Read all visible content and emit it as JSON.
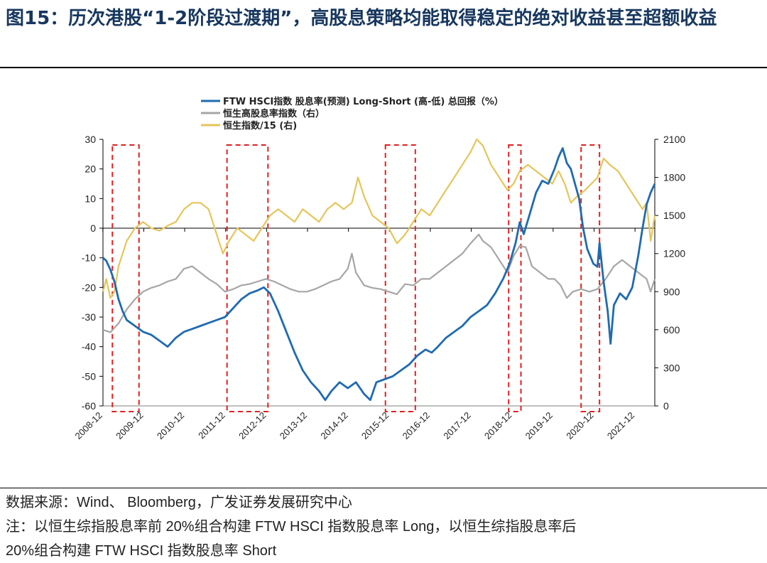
{
  "header": {
    "title": "图15：历次港股“1-2阶段过渡期”，高股息策略均能取得稳定的绝对收益甚至超额收益"
  },
  "footer": {
    "source": "数据来源：Wind、 Bloomberg，广发证券发展研究中心",
    "note_line1": "注：以恒生综指股息率前 20%组合构建 FTW HSCI 指数股息率 Long，以恒生综指股息率后",
    "note_line2": "20%组合构建 FTW HSCI 指数股息率 Short"
  },
  "chart_data": {
    "type": "line",
    "legend": [
      {
        "name": "FTW HSCI指数 股息率(预测) Long-Short (高-低) 总回报（%）",
        "color": "#1f6bb0"
      },
      {
        "name": "恒生高股息率指数（右）",
        "color": "#a6a6a6"
      },
      {
        "name": "恒生指数/15 (右)",
        "color": "#e6c55a"
      }
    ],
    "x_ticks": [
      "2008-12",
      "2009-12",
      "2010-12",
      "2011-12",
      "2012-12",
      "2013-12",
      "2014-12",
      "2015-12",
      "2016-12",
      "2017-12",
      "2018-12",
      "2019-12",
      "2020-12",
      "2021-12"
    ],
    "x_range": [
      2008.92,
      2022.4
    ],
    "y_left": {
      "min": -60,
      "max": 30,
      "ticks": [
        30,
        20,
        10,
        0,
        -10,
        -20,
        -30,
        -40,
        -50,
        -60
      ]
    },
    "y_right": {
      "min": 0,
      "max": 2100,
      "ticks": [
        2100,
        1800,
        1500,
        1200,
        900,
        600,
        300,
        0
      ]
    },
    "series": [
      {
        "name": "FTW HSCI Long-Short",
        "axis": "left",
        "color": "#1f6bb0",
        "points": [
          [
            2008.92,
            -10
          ],
          [
            2009.0,
            -11
          ],
          [
            2009.1,
            -14
          ],
          [
            2009.2,
            -18
          ],
          [
            2009.3,
            -24
          ],
          [
            2009.4,
            -28
          ],
          [
            2009.5,
            -31
          ],
          [
            2009.7,
            -33
          ],
          [
            2009.9,
            -35
          ],
          [
            2010.1,
            -36
          ],
          [
            2010.3,
            -38
          ],
          [
            2010.5,
            -40
          ],
          [
            2010.7,
            -37
          ],
          [
            2010.9,
            -35
          ],
          [
            2011.1,
            -34
          ],
          [
            2011.3,
            -33
          ],
          [
            2011.5,
            -32
          ],
          [
            2011.7,
            -31
          ],
          [
            2011.9,
            -30
          ],
          [
            2012.1,
            -27
          ],
          [
            2012.3,
            -24
          ],
          [
            2012.5,
            -22
          ],
          [
            2012.7,
            -21
          ],
          [
            2012.85,
            -20
          ],
          [
            2013.0,
            -22
          ],
          [
            2013.2,
            -28
          ],
          [
            2013.4,
            -35
          ],
          [
            2013.6,
            -42
          ],
          [
            2013.8,
            -48
          ],
          [
            2014.0,
            -52
          ],
          [
            2014.2,
            -55
          ],
          [
            2014.35,
            -58
          ],
          [
            2014.5,
            -55
          ],
          [
            2014.7,
            -52
          ],
          [
            2014.9,
            -54
          ],
          [
            2015.1,
            -52
          ],
          [
            2015.3,
            -56
          ],
          [
            2015.45,
            -58
          ],
          [
            2015.6,
            -52
          ],
          [
            2015.8,
            -51
          ],
          [
            2016.0,
            -50
          ],
          [
            2016.2,
            -48
          ],
          [
            2016.4,
            -46
          ],
          [
            2016.6,
            -43
          ],
          [
            2016.8,
            -41
          ],
          [
            2016.95,
            -42
          ],
          [
            2017.1,
            -40
          ],
          [
            2017.3,
            -37
          ],
          [
            2017.5,
            -35
          ],
          [
            2017.7,
            -33
          ],
          [
            2017.9,
            -30
          ],
          [
            2018.1,
            -28
          ],
          [
            2018.3,
            -26
          ],
          [
            2018.5,
            -22
          ],
          [
            2018.7,
            -17
          ],
          [
            2018.85,
            -12
          ],
          [
            2019.0,
            -5
          ],
          [
            2019.1,
            2
          ],
          [
            2019.2,
            -2
          ],
          [
            2019.35,
            5
          ],
          [
            2019.5,
            12
          ],
          [
            2019.65,
            16
          ],
          [
            2019.8,
            15
          ],
          [
            2019.95,
            20
          ],
          [
            2020.05,
            24
          ],
          [
            2020.15,
            27
          ],
          [
            2020.25,
            22
          ],
          [
            2020.35,
            20
          ],
          [
            2020.45,
            15
          ],
          [
            2020.55,
            10
          ],
          [
            2020.65,
            0
          ],
          [
            2020.75,
            -7
          ],
          [
            2020.9,
            -12
          ],
          [
            2021.0,
            -13
          ],
          [
            2021.05,
            -5
          ],
          [
            2021.15,
            -18
          ],
          [
            2021.25,
            -28
          ],
          [
            2021.32,
            -39
          ],
          [
            2021.4,
            -26
          ],
          [
            2021.55,
            -22
          ],
          [
            2021.7,
            -24
          ],
          [
            2021.85,
            -20
          ],
          [
            2022.0,
            -9
          ],
          [
            2022.1,
            0
          ],
          [
            2022.2,
            8
          ],
          [
            2022.3,
            12
          ],
          [
            2022.4,
            15
          ]
        ]
      },
      {
        "name": "恒生高股息率指数（右）",
        "axis": "right",
        "color": "#a6a6a6",
        "points": [
          [
            2008.92,
            600
          ],
          [
            2009.1,
            580
          ],
          [
            2009.3,
            650
          ],
          [
            2009.5,
            760
          ],
          [
            2009.7,
            840
          ],
          [
            2009.9,
            900
          ],
          [
            2010.1,
            930
          ],
          [
            2010.3,
            950
          ],
          [
            2010.5,
            980
          ],
          [
            2010.7,
            1000
          ],
          [
            2010.9,
            1080
          ],
          [
            2011.1,
            1100
          ],
          [
            2011.3,
            1050
          ],
          [
            2011.5,
            1000
          ],
          [
            2011.7,
            960
          ],
          [
            2011.9,
            900
          ],
          [
            2012.1,
            920
          ],
          [
            2012.3,
            950
          ],
          [
            2012.5,
            960
          ],
          [
            2012.7,
            980
          ],
          [
            2012.9,
            1000
          ],
          [
            2013.1,
            980
          ],
          [
            2013.3,
            950
          ],
          [
            2013.5,
            920
          ],
          [
            2013.7,
            900
          ],
          [
            2013.9,
            900
          ],
          [
            2014.1,
            920
          ],
          [
            2014.3,
            950
          ],
          [
            2014.5,
            980
          ],
          [
            2014.7,
            1000
          ],
          [
            2014.9,
            1080
          ],
          [
            2015.0,
            1200
          ],
          [
            2015.1,
            1050
          ],
          [
            2015.3,
            950
          ],
          [
            2015.5,
            930
          ],
          [
            2015.7,
            920
          ],
          [
            2015.9,
            900
          ],
          [
            2016.1,
            880
          ],
          [
            2016.3,
            960
          ],
          [
            2016.5,
            950
          ],
          [
            2016.7,
            1000
          ],
          [
            2016.9,
            1000
          ],
          [
            2017.1,
            1050
          ],
          [
            2017.3,
            1100
          ],
          [
            2017.5,
            1150
          ],
          [
            2017.7,
            1200
          ],
          [
            2017.9,
            1280
          ],
          [
            2018.1,
            1350
          ],
          [
            2018.2,
            1300
          ],
          [
            2018.4,
            1250
          ],
          [
            2018.6,
            1150
          ],
          [
            2018.8,
            1050
          ],
          [
            2018.95,
            1180
          ],
          [
            2019.1,
            1260
          ],
          [
            2019.25,
            1250
          ],
          [
            2019.4,
            1100
          ],
          [
            2019.6,
            1050
          ],
          [
            2019.8,
            1000
          ],
          [
            2019.95,
            1000
          ],
          [
            2020.1,
            950
          ],
          [
            2020.25,
            850
          ],
          [
            2020.4,
            900
          ],
          [
            2020.6,
            920
          ],
          [
            2020.8,
            900
          ],
          [
            2021.0,
            920
          ],
          [
            2021.2,
            1000
          ],
          [
            2021.4,
            1100
          ],
          [
            2021.6,
            1150
          ],
          [
            2021.8,
            1100
          ],
          [
            2022.0,
            1050
          ],
          [
            2022.2,
            1000
          ],
          [
            2022.3,
            900
          ],
          [
            2022.4,
            1000
          ]
        ]
      },
      {
        "name": "恒生指数/15 (右)",
        "axis": "right",
        "color": "#e6c55a",
        "points": [
          [
            2008.92,
            900
          ],
          [
            2009.0,
            1000
          ],
          [
            2009.1,
            850
          ],
          [
            2009.2,
            900
          ],
          [
            2009.3,
            1100
          ],
          [
            2009.4,
            1200
          ],
          [
            2009.5,
            1300
          ],
          [
            2009.7,
            1400
          ],
          [
            2009.9,
            1450
          ],
          [
            2010.1,
            1400
          ],
          [
            2010.3,
            1380
          ],
          [
            2010.5,
            1420
          ],
          [
            2010.7,
            1450
          ],
          [
            2010.9,
            1550
          ],
          [
            2011.1,
            1600
          ],
          [
            2011.3,
            1600
          ],
          [
            2011.5,
            1550
          ],
          [
            2011.7,
            1350
          ],
          [
            2011.85,
            1200
          ],
          [
            2012.0,
            1300
          ],
          [
            2012.2,
            1400
          ],
          [
            2012.4,
            1350
          ],
          [
            2012.6,
            1300
          ],
          [
            2012.8,
            1400
          ],
          [
            2013.0,
            1500
          ],
          [
            2013.2,
            1550
          ],
          [
            2013.4,
            1500
          ],
          [
            2013.6,
            1450
          ],
          [
            2013.8,
            1550
          ],
          [
            2014.0,
            1500
          ],
          [
            2014.2,
            1450
          ],
          [
            2014.4,
            1550
          ],
          [
            2014.6,
            1600
          ],
          [
            2014.8,
            1550
          ],
          [
            2015.0,
            1600
          ],
          [
            2015.15,
            1800
          ],
          [
            2015.3,
            1650
          ],
          [
            2015.5,
            1500
          ],
          [
            2015.7,
            1450
          ],
          [
            2015.9,
            1400
          ],
          [
            2016.1,
            1280
          ],
          [
            2016.3,
            1350
          ],
          [
            2016.5,
            1450
          ],
          [
            2016.7,
            1550
          ],
          [
            2016.9,
            1500
          ],
          [
            2017.1,
            1600
          ],
          [
            2017.3,
            1700
          ],
          [
            2017.5,
            1800
          ],
          [
            2017.7,
            1900
          ],
          [
            2017.9,
            2000
          ],
          [
            2018.05,
            2100
          ],
          [
            2018.2,
            2050
          ],
          [
            2018.4,
            1900
          ],
          [
            2018.6,
            1800
          ],
          [
            2018.8,
            1700
          ],
          [
            2018.95,
            1750
          ],
          [
            2019.1,
            1850
          ],
          [
            2019.3,
            1900
          ],
          [
            2019.5,
            1850
          ],
          [
            2019.7,
            1800
          ],
          [
            2019.9,
            1750
          ],
          [
            2020.05,
            1850
          ],
          [
            2020.2,
            1750
          ],
          [
            2020.35,
            1600
          ],
          [
            2020.5,
            1650
          ],
          [
            2020.7,
            1700
          ],
          [
            2020.85,
            1750
          ],
          [
            2021.0,
            1800
          ],
          [
            2021.15,
            1950
          ],
          [
            2021.3,
            1900
          ],
          [
            2021.5,
            1850
          ],
          [
            2021.7,
            1750
          ],
          [
            2021.9,
            1650
          ],
          [
            2022.1,
            1550
          ],
          [
            2022.2,
            1600
          ],
          [
            2022.3,
            1300
          ],
          [
            2022.4,
            1500
          ]
        ]
      }
    ],
    "highlight_periods": [
      [
        2009.15,
        2009.8
      ],
      [
        2011.95,
        2012.95
      ],
      [
        2015.82,
        2016.55
      ],
      [
        2018.83,
        2019.13
      ],
      [
        2020.6,
        2021.05
      ]
    ]
  }
}
